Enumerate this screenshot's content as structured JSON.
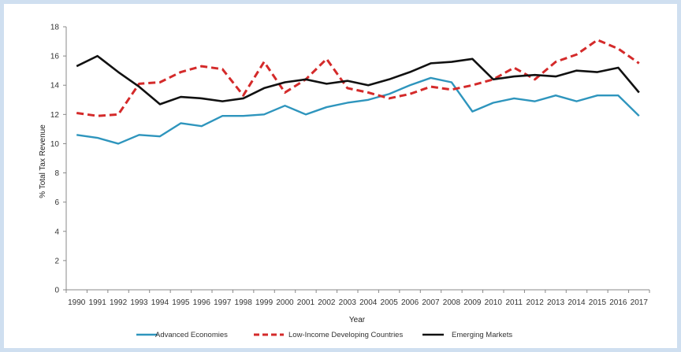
{
  "chart_data": {
    "type": "line",
    "title": "",
    "xlabel": "Year",
    "ylabel": "% Total Tax Revenue",
    "x": [
      "1990",
      "1991",
      "1992",
      "1993",
      "1994",
      "1995",
      "1996",
      "1997",
      "1998",
      "1999",
      "2000",
      "2001",
      "2002",
      "2003",
      "2004",
      "2005",
      "2006",
      "2007",
      "2008",
      "2009",
      "2010",
      "2011",
      "2012",
      "2013",
      "2014",
      "2015",
      "2016",
      "2017"
    ],
    "ylim": [
      0,
      18
    ],
    "yticks": [
      0,
      2,
      4,
      6,
      8,
      10,
      12,
      14,
      16,
      18
    ],
    "grid": false,
    "legend_position": "bottom",
    "series": [
      {
        "name": "Advanced Economies",
        "color": "#2e95bd",
        "style": "solid",
        "values": [
          10.6,
          10.4,
          10.0,
          10.6,
          10.5,
          11.4,
          11.2,
          11.9,
          11.9,
          12.0,
          12.6,
          12.0,
          12.5,
          12.8,
          13.0,
          13.4,
          14.0,
          14.5,
          14.2,
          12.2,
          12.8,
          13.1,
          12.9,
          13.3,
          12.9,
          13.3,
          13.3,
          11.9
        ]
      },
      {
        "name": "Low-Income Developing Countries",
        "color": "#d42a2a",
        "style": "dashed",
        "values": [
          12.1,
          11.9,
          12.0,
          14.1,
          14.2,
          14.9,
          15.3,
          15.1,
          13.3,
          15.6,
          13.5,
          14.4,
          15.8,
          13.8,
          13.5,
          13.1,
          13.4,
          13.9,
          13.7,
          14.0,
          14.4,
          15.2,
          14.4,
          15.6,
          16.1,
          17.1,
          16.5,
          15.5
        ]
      },
      {
        "name": "Emerging Markets",
        "color": "#111111",
        "style": "solid",
        "values": [
          15.3,
          16.0,
          14.9,
          13.9,
          12.7,
          13.2,
          13.1,
          12.9,
          13.1,
          13.8,
          14.2,
          14.4,
          14.1,
          14.3,
          14.0,
          14.4,
          14.9,
          15.5,
          15.6,
          15.8,
          14.4,
          14.6,
          14.7,
          14.6,
          15.0,
          14.9,
          15.2,
          13.5
        ]
      }
    ]
  }
}
